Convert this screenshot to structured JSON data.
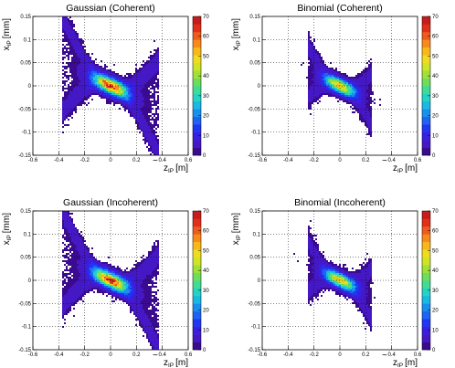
{
  "figure": {
    "palette": [
      "#ffffff",
      "#3a0a8f",
      "#4418c4",
      "#3a1fe0",
      "#2036f2",
      "#1e63f2",
      "#1a90ee",
      "#19b9e4",
      "#24d3c4",
      "#40dc92",
      "#6edd5c",
      "#a1e035",
      "#cfe426",
      "#f0dc1e",
      "#f8b81c",
      "#f88a1b",
      "#f05a1c",
      "#e0301c",
      "#c81c1a"
    ]
  },
  "chart_data": [
    {
      "type": "heatmap",
      "title": "Gaussian (Coherent)",
      "xlabel_main": "z",
      "xlabel_sub": "IP",
      "xlabel_unit": "[m]",
      "ylabel_main": "x",
      "ylabel_sub": "IP",
      "ylabel_unit": "[mm]",
      "xlim": [
        -0.6,
        0.6
      ],
      "ylim": [
        -0.15,
        0.15
      ],
      "xticks": [
        "-0.6",
        "-0.4",
        "-0.2",
        "0",
        "0.2",
        "0.4",
        "0.6"
      ],
      "yticks": [
        "-0.15",
        "-0.1",
        "-0.05",
        "0",
        "0.05",
        "0.1",
        "0.15"
      ],
      "zlim": [
        0,
        70
      ],
      "zticks": [
        "0",
        "10",
        "20",
        "30",
        "40",
        "50",
        "60",
        "70"
      ],
      "grid": true,
      "shape": {
        "slope": -0.125,
        "wing_half_length": 0.37,
        "wing_height": 0.105,
        "core_sigma_z": 0.09,
        "core_sigma_x": 0.012,
        "peak": 55
      }
    },
    {
      "type": "heatmap",
      "title": "Binomial (Coherent)",
      "xlabel_main": "z",
      "xlabel_sub": "IP",
      "xlabel_unit": "[m]",
      "ylabel_main": "x",
      "ylabel_sub": "IP",
      "ylabel_unit": "[mm]",
      "xlim": [
        -0.6,
        0.6
      ],
      "ylim": [
        -0.15,
        0.15
      ],
      "xticks": [
        "-0.6",
        "-0.4",
        "-0.2",
        "0",
        "0.2",
        "0.4",
        "0.6"
      ],
      "yticks": [
        "-0.15",
        "-0.1",
        "-0.05",
        "0",
        "0.05",
        "0.1",
        "0.15"
      ],
      "zlim": [
        0,
        70
      ],
      "zticks": [
        "0",
        "10",
        "20",
        "30",
        "40",
        "50",
        "60",
        "70"
      ],
      "grid": true,
      "shape": {
        "slope": -0.125,
        "wing_half_length": 0.24,
        "wing_height": 0.055,
        "core_sigma_z": 0.08,
        "core_sigma_x": 0.011,
        "peak": 45
      }
    },
    {
      "type": "heatmap",
      "title": "Gaussian (Incoherent)",
      "xlabel_main": "z",
      "xlabel_sub": "IP",
      "xlabel_unit": "[m]",
      "ylabel_main": "x",
      "ylabel_sub": "IP",
      "ylabel_unit": "[mm]",
      "xlim": [
        -0.6,
        0.6
      ],
      "ylim": [
        -0.15,
        0.15
      ],
      "xticks": [
        "-0.6",
        "-0.4",
        "-0.2",
        "0",
        "0.2",
        "0.4",
        "0.6"
      ],
      "yticks": [
        "-0.15",
        "-0.1",
        "-0.05",
        "0",
        "0.05",
        "0.1",
        "0.15"
      ],
      "zlim": [
        0,
        70
      ],
      "zticks": [
        "0",
        "10",
        "20",
        "30",
        "40",
        "50",
        "60",
        "70"
      ],
      "grid": true,
      "shape": {
        "slope": -0.125,
        "wing_half_length": 0.37,
        "wing_height": 0.105,
        "core_sigma_z": 0.09,
        "core_sigma_x": 0.012,
        "peak": 55
      }
    },
    {
      "type": "heatmap",
      "title": "Binomial (Incoherent)",
      "xlabel_main": "z",
      "xlabel_sub": "IP",
      "xlabel_unit": "[m]",
      "ylabel_main": "x",
      "ylabel_sub": "IP",
      "ylabel_unit": "[mm]",
      "xlim": [
        -0.6,
        0.6
      ],
      "ylim": [
        -0.15,
        0.15
      ],
      "xticks": [
        "-0.6",
        "-0.4",
        "-0.2",
        "0",
        "0.2",
        "0.4",
        "0.6"
      ],
      "yticks": [
        "-0.15",
        "-0.1",
        "-0.05",
        "0",
        "0.05",
        "0.1",
        "0.15"
      ],
      "zlim": [
        0,
        70
      ],
      "zticks": [
        "0",
        "10",
        "20",
        "30",
        "40",
        "50",
        "60",
        "70"
      ],
      "grid": true,
      "shape": {
        "slope": -0.125,
        "wing_half_length": 0.24,
        "wing_height": 0.055,
        "core_sigma_z": 0.08,
        "core_sigma_x": 0.011,
        "peak": 45
      }
    }
  ]
}
